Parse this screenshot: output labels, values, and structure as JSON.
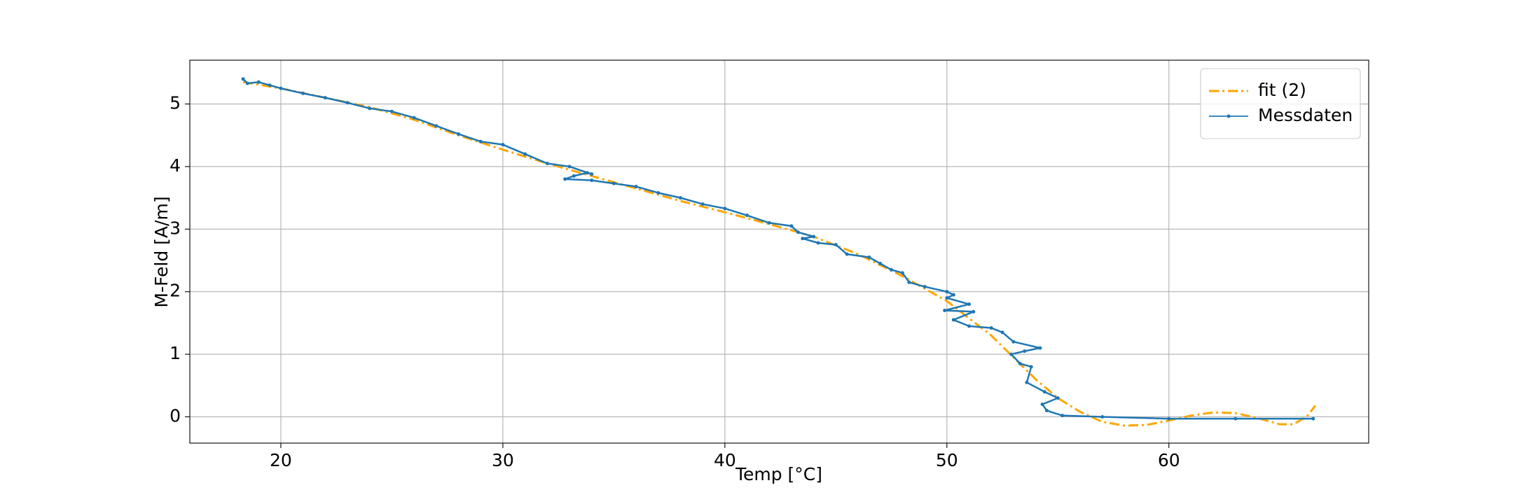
{
  "chart_data": {
    "type": "line",
    "xlabel": "Temp [°C]",
    "ylabel": "M-Feld [A/m]",
    "xlim": [
      15.9,
      69.0
    ],
    "ylim": [
      -0.42,
      5.7
    ],
    "xticks": [
      20,
      30,
      40,
      50,
      60
    ],
    "yticks": [
      0,
      1,
      2,
      3,
      4,
      5
    ],
    "grid": true,
    "legend": "upper right",
    "series": [
      {
        "name": "fit (2)",
        "color": "#ffa500",
        "linestyle": "dashdot",
        "marker": false,
        "x": [
          18.3,
          20,
          22,
          24,
          26,
          28,
          30,
          32,
          34,
          36,
          38,
          40,
          42,
          44,
          46,
          48,
          50,
          52,
          53,
          54,
          55,
          56,
          57,
          58,
          59,
          60,
          61,
          62,
          63,
          64,
          65,
          65.6,
          66.2,
          66.6
        ],
        "values": [
          5.35,
          5.25,
          5.1,
          4.95,
          4.75,
          4.5,
          4.27,
          4.05,
          3.85,
          3.65,
          3.45,
          3.27,
          3.08,
          2.88,
          2.6,
          2.25,
          1.85,
          1.3,
          0.95,
          0.6,
          0.3,
          0.08,
          -0.08,
          -0.14,
          -0.13,
          -0.06,
          0.02,
          0.07,
          0.06,
          -0.02,
          -0.12,
          -0.12,
          0.0,
          0.18
        ]
      },
      {
        "name": "Messdaten",
        "color": "#1f77b4",
        "linestyle": "solid",
        "marker": true,
        "x": [
          18.3,
          18.5,
          19,
          19.5,
          20,
          21,
          22,
          23,
          24,
          25,
          26,
          27,
          28,
          29,
          30,
          31,
          32,
          33,
          34,
          33.8,
          33.2,
          32.8,
          34,
          35,
          36,
          37,
          38,
          39,
          40,
          41,
          42,
          43,
          43.3,
          44,
          43.5,
          44.2,
          45,
          45.5,
          46.5,
          47,
          47.5,
          48,
          48.3,
          49,
          50,
          50.3,
          50,
          51,
          49.9,
          51.2,
          50.3,
          51,
          52,
          52.5,
          53,
          54.2,
          53.5,
          52.9,
          53.3,
          53.8,
          53.6,
          54.4,
          55,
          54.3,
          54.5,
          55.2,
          57,
          60,
          63,
          66.5
        ],
        "values": [
          5.4,
          5.33,
          5.35,
          5.3,
          5.25,
          5.17,
          5.1,
          5.02,
          4.93,
          4.88,
          4.78,
          4.65,
          4.52,
          4.4,
          4.35,
          4.2,
          4.05,
          4.0,
          3.88,
          3.9,
          3.85,
          3.8,
          3.78,
          3.73,
          3.68,
          3.58,
          3.5,
          3.4,
          3.33,
          3.22,
          3.1,
          3.05,
          2.95,
          2.88,
          2.85,
          2.78,
          2.75,
          2.6,
          2.55,
          2.45,
          2.35,
          2.3,
          2.15,
          2.08,
          2.0,
          1.95,
          1.9,
          1.8,
          1.7,
          1.68,
          1.55,
          1.45,
          1.42,
          1.35,
          1.2,
          1.1,
          1.05,
          1.0,
          0.85,
          0.8,
          0.55,
          0.4,
          0.3,
          0.2,
          0.1,
          0.02,
          0.0,
          -0.03,
          -0.03,
          -0.03
        ]
      }
    ]
  }
}
